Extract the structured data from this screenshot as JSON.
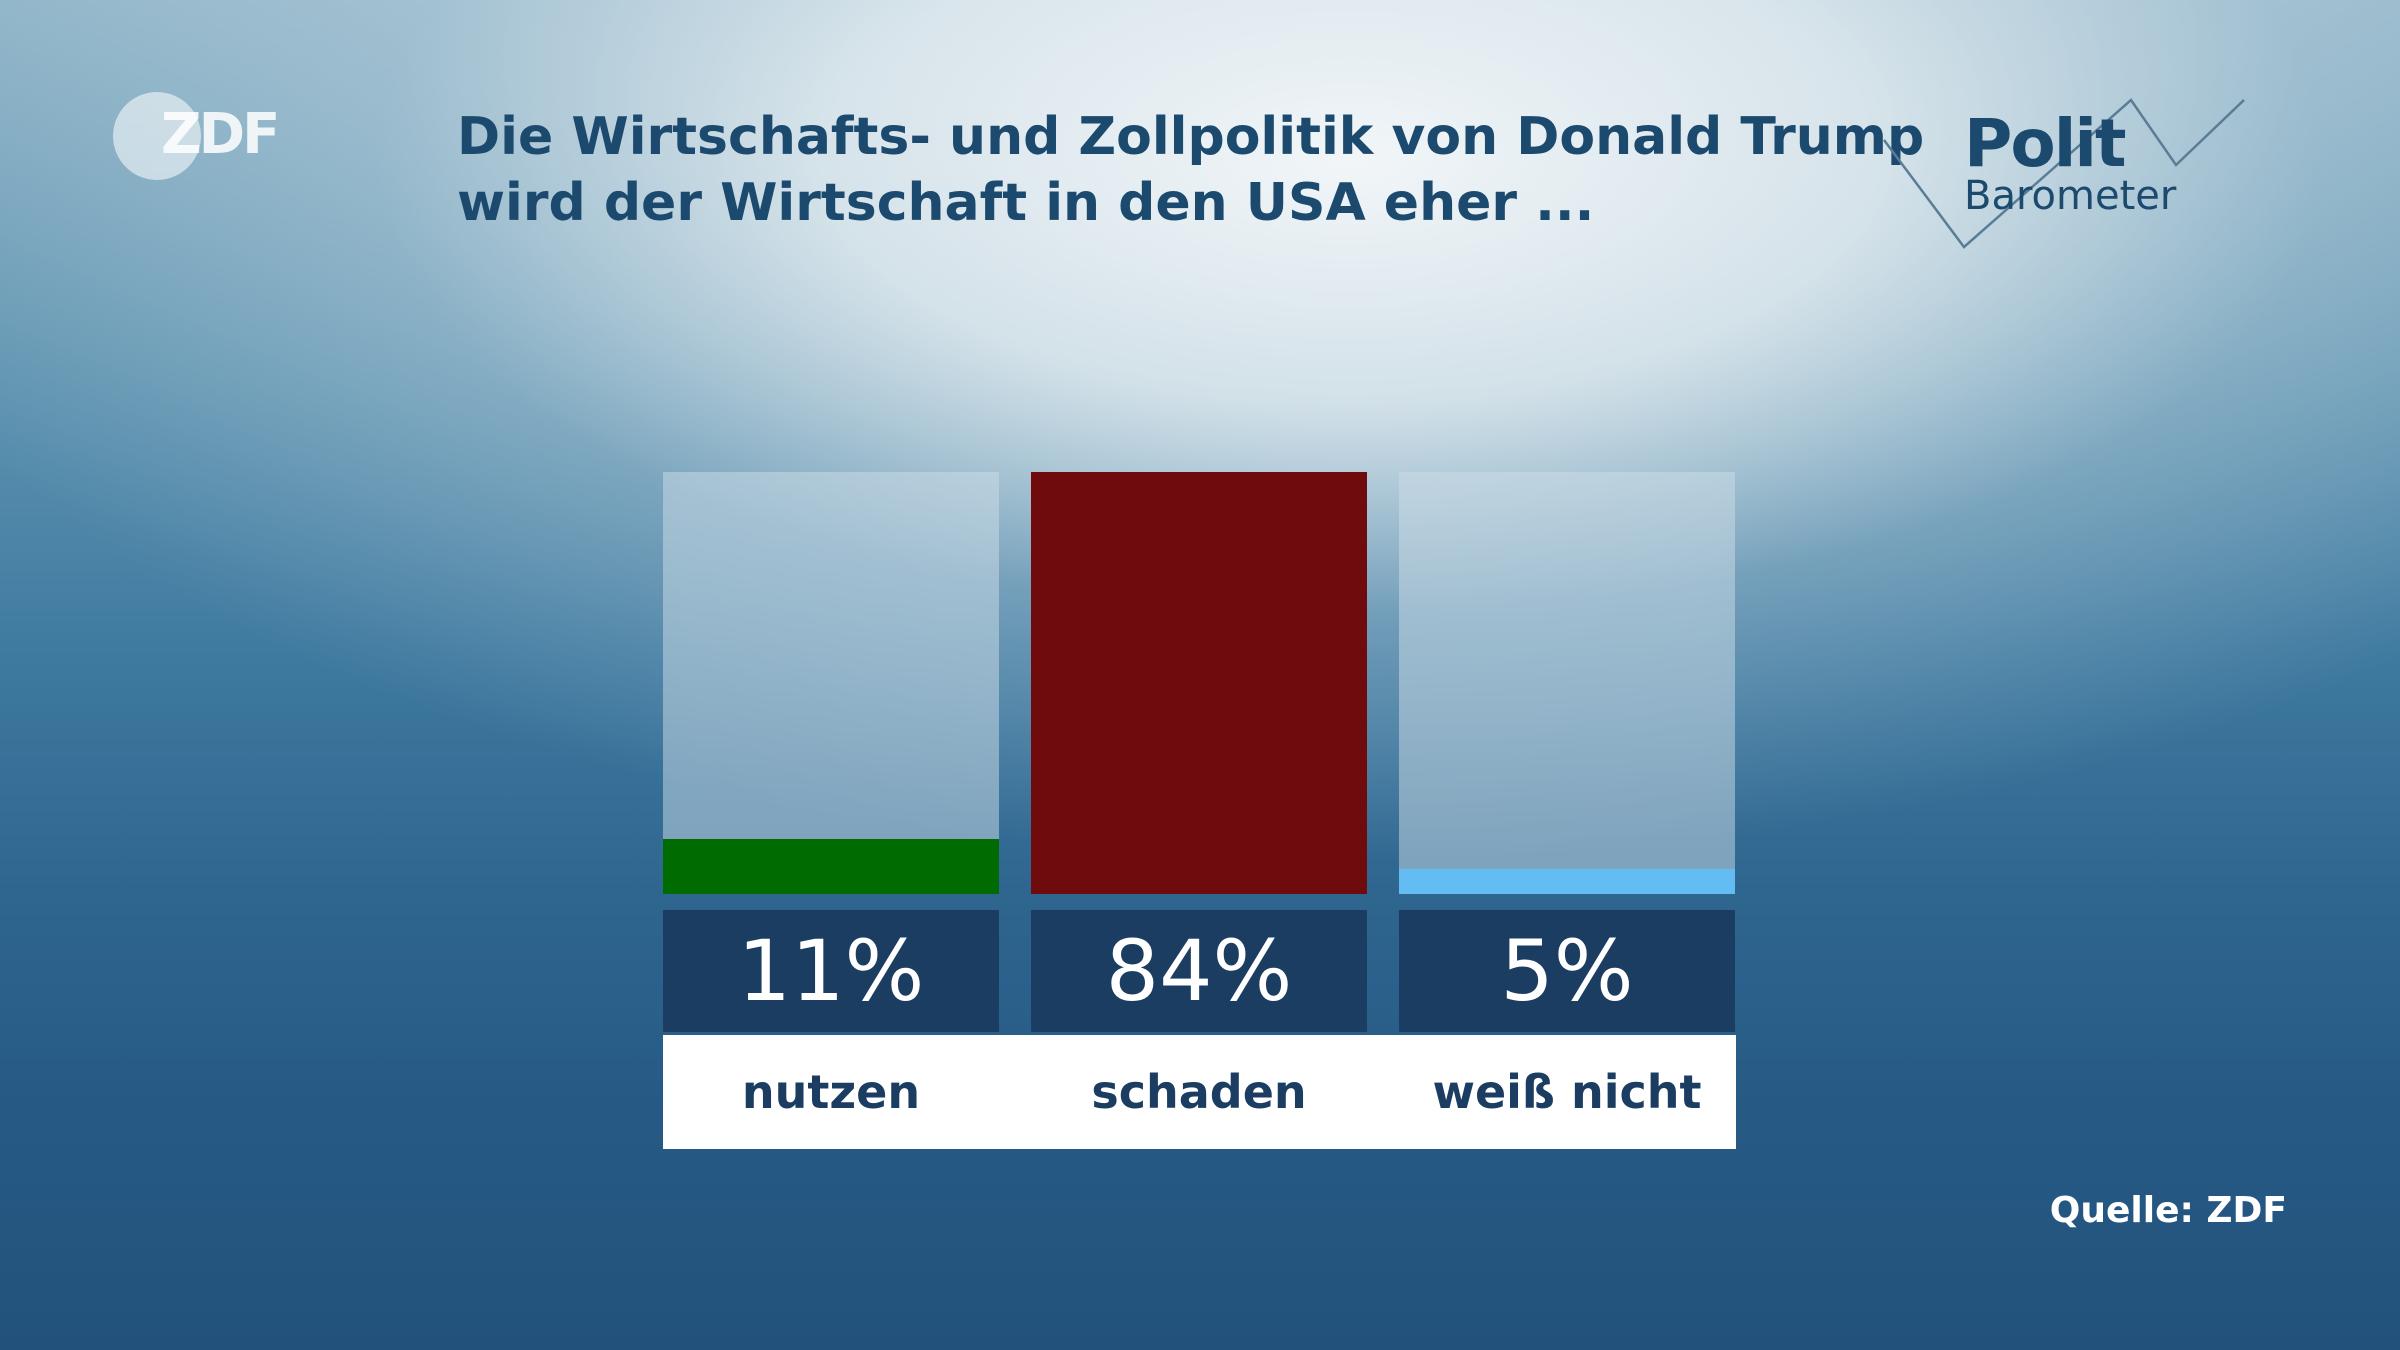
{
  "brand": {
    "zdf_logo_text": "ZDF",
    "polit_text": "Polit",
    "barometer_text": "Barometer"
  },
  "title_lines": [
    "Die Wirtschafts- und Zollpolitik von Donald Trump",
    "wird der Wirtschaft in den USA eher ..."
  ],
  "source": "Quelle: ZDF",
  "chart_data": {
    "type": "bar",
    "title": "Die Wirtschafts- und Zollpolitik von Donald Trump wird der Wirtschaft in den USA eher ...",
    "categories": [
      "nutzen",
      "schaden",
      "weiß nicht"
    ],
    "values": [
      11,
      84,
      5
    ],
    "value_labels": [
      "11%",
      "84%",
      "5%"
    ],
    "unit": "%",
    "ylim": [
      0,
      84
    ],
    "colors": [
      "#006b00",
      "#700b0d",
      "#64bdf2"
    ],
    "track_color": "#cddee8",
    "grid": false,
    "legend": "none"
  }
}
